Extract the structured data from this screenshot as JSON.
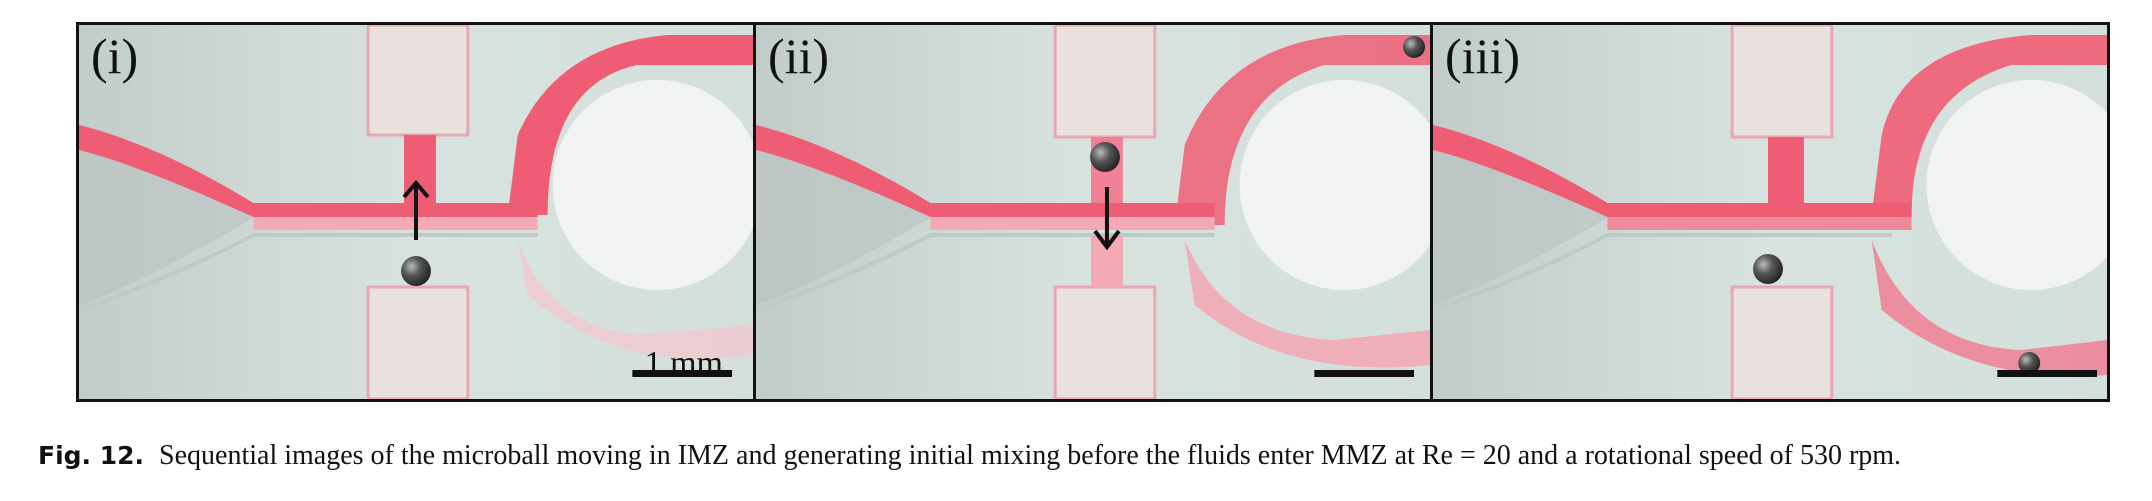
{
  "panels": [
    {
      "label": "(i)",
      "scale_bar_label": "1 mm",
      "arrow_direction": "up"
    },
    {
      "label": "(ii)",
      "scale_bar_label": "",
      "arrow_direction": "down"
    },
    {
      "label": "(iii)",
      "scale_bar_label": "",
      "arrow_direction": ""
    }
  ],
  "colors": {
    "fluid": "#ef5d74",
    "background": "#cfddd8",
    "chip": "#e6ded9",
    "ball": "#4a4a4a"
  },
  "caption": {
    "number": "Fig. 12.",
    "text": "Sequential images of the microball moving in IMZ and generating initial mixing before the fluids enter MMZ at Re = 20 and a rotational speed of 530 rpm."
  }
}
